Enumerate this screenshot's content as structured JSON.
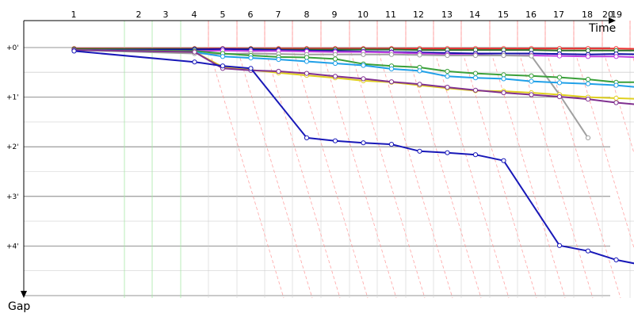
{
  "chart_data": {
    "type": "line",
    "xlabel": "Time",
    "ylabel": "Gap",
    "x_tick_labels": [
      "1",
      "2",
      "3",
      "4",
      "5",
      "6",
      "7",
      "8",
      "9",
      "10",
      "11",
      "12",
      "13",
      "14",
      "15",
      "16",
      "17",
      "18",
      "20",
      "19"
    ],
    "y_tick_labels": [
      "+0'",
      "+1'",
      "+2'",
      "+3'",
      "+4'"
    ],
    "ylim_minutes": [
      0,
      5
    ],
    "grid": true,
    "colors": {
      "minor_grid": "#d0d0d0",
      "major_grid": "#707070",
      "lapped_guide": "#ff9a9a",
      "pit_guide": "#a8e8a8",
      "axis": "#000000"
    },
    "series": [
      {
        "color": "#f03030",
        "points": [
          [
            0.5,
            0.02
          ],
          [
            3.5,
            0.02
          ],
          [
            4.5,
            0.02
          ],
          [
            5.5,
            0.02
          ],
          [
            6.5,
            0.02
          ],
          [
            7.5,
            0.02
          ],
          [
            8.5,
            0.02
          ],
          [
            9.5,
            0.02
          ],
          [
            10.5,
            0.02
          ],
          [
            11.5,
            0.02
          ],
          [
            12.5,
            0.02
          ],
          [
            13.5,
            0.02
          ],
          [
            14.5,
            0.02
          ],
          [
            15.5,
            0.02
          ],
          [
            16.5,
            0.02
          ],
          [
            17.5,
            0.02
          ],
          [
            18.5,
            0.02
          ],
          [
            19.5,
            0.03
          ]
        ]
      },
      {
        "color": "#2c6e2c",
        "points": [
          [
            0.5,
            0.03
          ],
          [
            3.5,
            0.03
          ],
          [
            4.5,
            0.04
          ],
          [
            5.5,
            0.03
          ],
          [
            6.5,
            0.04
          ],
          [
            7.5,
            0.04
          ],
          [
            8.5,
            0.04
          ],
          [
            9.5,
            0.04
          ],
          [
            10.5,
            0.04
          ],
          [
            11.5,
            0.05
          ],
          [
            12.5,
            0.05
          ],
          [
            13.5,
            0.05
          ],
          [
            14.5,
            0.05
          ],
          [
            15.5,
            0.05
          ],
          [
            16.5,
            0.06
          ],
          [
            17.5,
            0.06
          ],
          [
            18.5,
            0.06
          ],
          [
            19.5,
            0.06
          ]
        ]
      },
      {
        "color": "#1010a8",
        "points": [
          [
            0.5,
            0.05
          ],
          [
            3.5,
            0.04
          ],
          [
            4.5,
            0.03
          ],
          [
            5.5,
            0.04
          ],
          [
            6.5,
            0.05
          ],
          [
            7.5,
            0.06
          ],
          [
            8.5,
            0.07
          ],
          [
            9.5,
            0.08
          ],
          [
            10.5,
            0.09
          ],
          [
            11.5,
            0.1
          ],
          [
            12.5,
            0.11
          ],
          [
            13.5,
            0.12
          ],
          [
            14.5,
            0.12
          ],
          [
            15.5,
            0.12
          ],
          [
            16.5,
            0.13
          ],
          [
            17.5,
            0.14
          ],
          [
            18.5,
            0.13
          ],
          [
            19.5,
            0.14
          ]
        ]
      },
      {
        "color": "#c040e0",
        "points": [
          [
            0.5,
            0.05
          ],
          [
            3.5,
            0.07
          ],
          [
            4.5,
            0.06
          ],
          [
            5.5,
            0.07
          ],
          [
            6.5,
            0.07
          ],
          [
            7.5,
            0.08
          ],
          [
            8.5,
            0.09
          ],
          [
            9.5,
            0.09
          ],
          [
            10.5,
            0.1
          ],
          [
            11.5,
            0.12
          ],
          [
            12.5,
            0.14
          ],
          [
            13.5,
            0.15
          ],
          [
            14.5,
            0.16
          ],
          [
            15.5,
            0.16
          ],
          [
            16.5,
            0.17
          ],
          [
            17.5,
            0.18
          ],
          [
            18.5,
            0.18
          ],
          [
            19.5,
            0.2
          ]
        ]
      },
      {
        "color": "#a0a0a0",
        "points": [
          [
            0.5,
            0.05
          ],
          [
            3.5,
            0.12
          ],
          [
            4.5,
            0.13
          ],
          [
            5.5,
            0.12
          ],
          [
            6.5,
            0.13
          ],
          [
            7.5,
            0.14
          ],
          [
            8.5,
            0.14
          ],
          [
            9.5,
            0.14
          ],
          [
            10.5,
            0.14
          ],
          [
            11.5,
            0.15
          ],
          [
            12.5,
            0.16
          ],
          [
            13.5,
            0.16
          ],
          [
            14.5,
            0.16
          ],
          [
            15.5,
            0.17
          ],
          [
            16.5,
            0.95
          ],
          [
            17.5,
            1.82
          ]
        ]
      },
      {
        "color": "#3aa03a",
        "points": [
          [
            0.5,
            0.05
          ],
          [
            3.5,
            0.07
          ],
          [
            4.5,
            0.12
          ],
          [
            5.5,
            0.16
          ],
          [
            6.5,
            0.19
          ],
          [
            7.5,
            0.2
          ],
          [
            8.5,
            0.23
          ],
          [
            9.5,
            0.33
          ],
          [
            10.5,
            0.37
          ],
          [
            11.5,
            0.4
          ],
          [
            12.5,
            0.48
          ],
          [
            13.5,
            0.52
          ],
          [
            14.5,
            0.55
          ],
          [
            15.5,
            0.57
          ],
          [
            16.5,
            0.6
          ],
          [
            17.5,
            0.64
          ],
          [
            18.5,
            0.7
          ],
          [
            19.5,
            0.7
          ]
        ]
      },
      {
        "color": "#20a0e8",
        "points": [
          [
            0.5,
            0.05
          ],
          [
            3.5,
            0.09
          ],
          [
            4.5,
            0.18
          ],
          [
            5.5,
            0.21
          ],
          [
            6.5,
            0.24
          ],
          [
            7.5,
            0.28
          ],
          [
            8.5,
            0.32
          ],
          [
            9.5,
            0.36
          ],
          [
            10.5,
            0.43
          ],
          [
            11.5,
            0.47
          ],
          [
            12.5,
            0.58
          ],
          [
            13.5,
            0.61
          ],
          [
            14.5,
            0.63
          ],
          [
            15.5,
            0.68
          ],
          [
            16.5,
            0.71
          ],
          [
            17.5,
            0.73
          ],
          [
            18.5,
            0.76
          ],
          [
            19.5,
            0.81
          ]
        ]
      },
      {
        "color": "#e0d020",
        "points": [
          [
            0.5,
            0.05
          ],
          [
            3.5,
            0.09
          ],
          [
            4.5,
            0.39
          ],
          [
            5.5,
            0.45
          ],
          [
            6.5,
            0.51
          ],
          [
            7.5,
            0.56
          ],
          [
            8.5,
            0.61
          ],
          [
            9.5,
            0.67
          ],
          [
            10.5,
            0.7
          ],
          [
            11.5,
            0.76
          ],
          [
            12.5,
            0.82
          ],
          [
            13.5,
            0.87
          ],
          [
            14.5,
            0.88
          ],
          [
            15.5,
            0.91
          ],
          [
            16.5,
            0.95
          ],
          [
            17.5,
            1.0
          ],
          [
            18.5,
            1.02
          ],
          [
            19.5,
            1.04
          ]
        ]
      },
      {
        "color": "#803090",
        "points": [
          [
            0.5,
            0.05
          ],
          [
            3.5,
            0.09
          ],
          [
            4.5,
            0.42
          ],
          [
            5.5,
            0.46
          ],
          [
            6.5,
            0.48
          ],
          [
            7.5,
            0.52
          ],
          [
            8.5,
            0.58
          ],
          [
            9.5,
            0.63
          ],
          [
            10.5,
            0.69
          ],
          [
            11.5,
            0.74
          ],
          [
            12.5,
            0.8
          ],
          [
            13.5,
            0.86
          ],
          [
            14.5,
            0.91
          ],
          [
            15.5,
            0.95
          ],
          [
            16.5,
            0.99
          ],
          [
            17.5,
            1.04
          ],
          [
            18.5,
            1.11
          ],
          [
            19.5,
            1.16
          ]
        ]
      },
      {
        "color": "#1818b8",
        "points": [
          [
            0.5,
            0.07
          ],
          [
            3.5,
            0.29
          ],
          [
            4.5,
            0.37
          ],
          [
            5.5,
            0.42
          ],
          [
            7.5,
            1.82
          ],
          [
            8.5,
            1.88
          ],
          [
            9.5,
            1.92
          ],
          [
            10.5,
            1.95
          ],
          [
            11.5,
            2.09
          ],
          [
            12.5,
            2.12
          ],
          [
            13.5,
            2.16
          ],
          [
            14.5,
            2.28
          ],
          [
            16.5,
            3.99
          ],
          [
            17.5,
            4.1
          ],
          [
            18.5,
            4.28
          ],
          [
            19.5,
            4.39
          ],
          [
            20.5,
            4.47
          ]
        ]
      }
    ]
  }
}
